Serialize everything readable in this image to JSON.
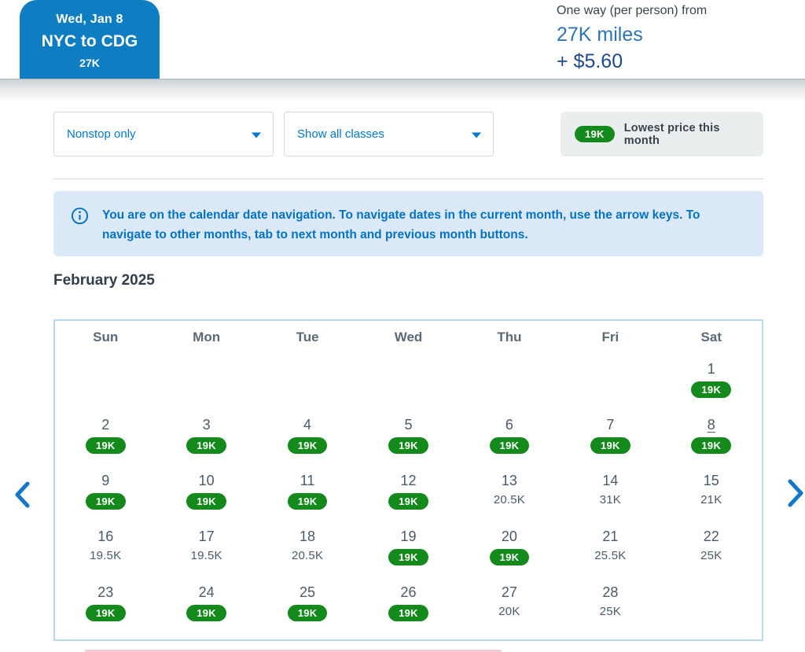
{
  "header": {
    "selected_flight_card": {
      "date": "Wed, Jan 8",
      "route": "NYC to CDG",
      "price": "27K"
    },
    "price_summary": {
      "label": "One way (per person) from",
      "miles": "27K miles",
      "fees": "+ $5.60"
    }
  },
  "filters": {
    "stops_dropdown": {
      "value": "Nonstop only"
    },
    "classes_dropdown": {
      "value": "Show all classes"
    },
    "legend": {
      "badge": "19K",
      "label": "Lowest price this month"
    }
  },
  "info_banner": {
    "text": "You are on the calendar date navigation. To navigate dates in the current month, use the arrow keys. To navigate to other months, tab to next month and previous month buttons."
  },
  "calendar": {
    "month_title": "February 2025",
    "weekdays": [
      "Sun",
      "Mon",
      "Tue",
      "Wed",
      "Thu",
      "Fri",
      "Sat"
    ],
    "first_day_column": 7,
    "days": [
      {
        "date": 1,
        "price": "19K",
        "lowest": true,
        "focused": false
      },
      {
        "date": 2,
        "price": "19K",
        "lowest": true,
        "focused": false
      },
      {
        "date": 3,
        "price": "19K",
        "lowest": true,
        "focused": false
      },
      {
        "date": 4,
        "price": "19K",
        "lowest": true,
        "focused": false
      },
      {
        "date": 5,
        "price": "19K",
        "lowest": true,
        "focused": false
      },
      {
        "date": 6,
        "price": "19K",
        "lowest": true,
        "focused": false
      },
      {
        "date": 7,
        "price": "19K",
        "lowest": true,
        "focused": false
      },
      {
        "date": 8,
        "price": "19K",
        "lowest": true,
        "focused": true
      },
      {
        "date": 9,
        "price": "19K",
        "lowest": true,
        "focused": false
      },
      {
        "date": 10,
        "price": "19K",
        "lowest": true,
        "focused": false
      },
      {
        "date": 11,
        "price": "19K",
        "lowest": true,
        "focused": false
      },
      {
        "date": 12,
        "price": "19K",
        "lowest": true,
        "focused": false
      },
      {
        "date": 13,
        "price": "20.5K",
        "lowest": false,
        "focused": false
      },
      {
        "date": 14,
        "price": "31K",
        "lowest": false,
        "focused": false
      },
      {
        "date": 15,
        "price": "21K",
        "lowest": false,
        "focused": false
      },
      {
        "date": 16,
        "price": "19.5K",
        "lowest": false,
        "focused": false
      },
      {
        "date": 17,
        "price": "19.5K",
        "lowest": false,
        "focused": false
      },
      {
        "date": 18,
        "price": "20.5K",
        "lowest": false,
        "focused": false
      },
      {
        "date": 19,
        "price": "19K",
        "lowest": true,
        "focused": false
      },
      {
        "date": 20,
        "price": "19K",
        "lowest": true,
        "focused": false
      },
      {
        "date": 21,
        "price": "25.5K",
        "lowest": false,
        "focused": false
      },
      {
        "date": 22,
        "price": "25K",
        "lowest": false,
        "focused": false
      },
      {
        "date": 23,
        "price": "19K",
        "lowest": true,
        "focused": false
      },
      {
        "date": 24,
        "price": "19K",
        "lowest": true,
        "focused": false
      },
      {
        "date": 25,
        "price": "19K",
        "lowest": true,
        "focused": false
      },
      {
        "date": 26,
        "price": "19K",
        "lowest": true,
        "focused": false
      },
      {
        "date": 27,
        "price": "20K",
        "lowest": false,
        "focused": false
      },
      {
        "date": 28,
        "price": "25K",
        "lowest": false,
        "focused": false
      }
    ]
  },
  "colors": {
    "brand_blue": "#0f7dc2",
    "link_blue": "#0078d2",
    "miles_blue": "#2e74b5",
    "fees_navy": "#20488f",
    "lowest_green": "#148a1d",
    "banner_bg": "#dbe8f8",
    "banner_text": "#0073c4",
    "slate_text": "#4a5a68",
    "calendar_border": "#b9d9ee"
  }
}
